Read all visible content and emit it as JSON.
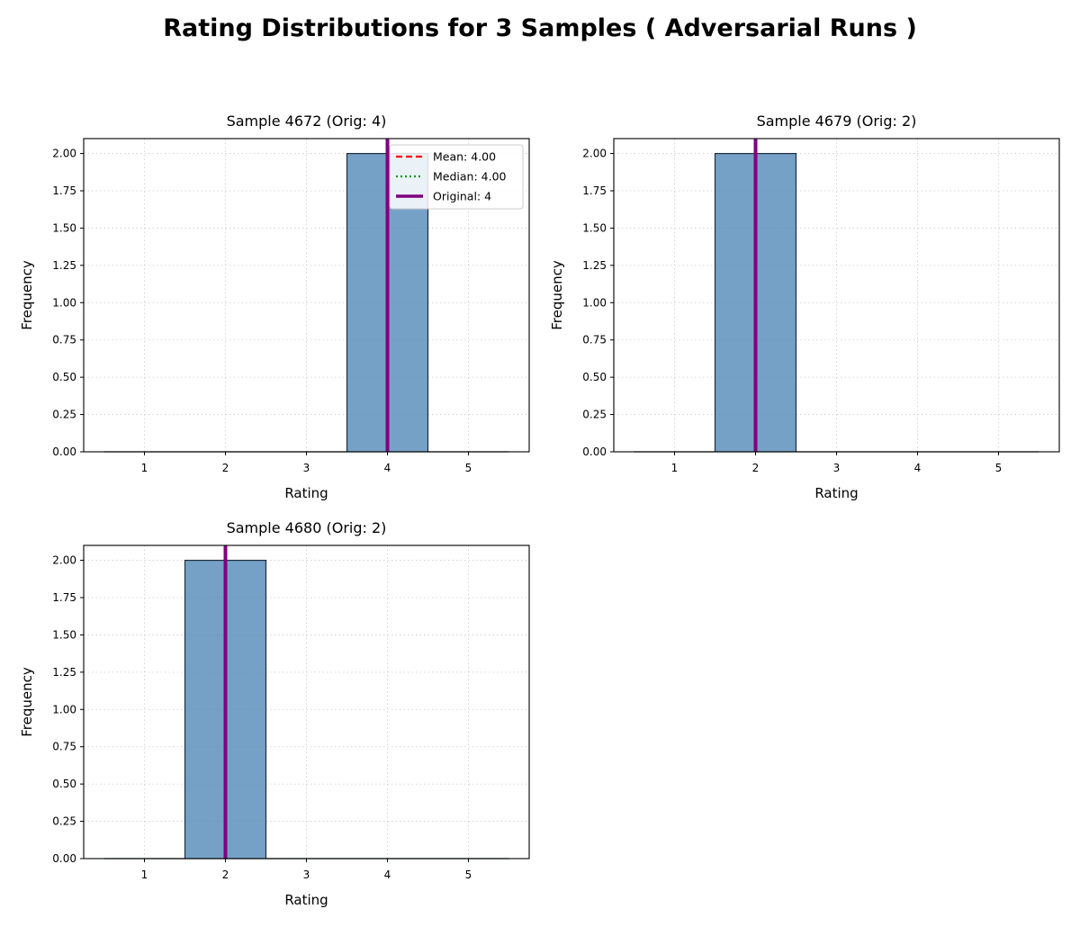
{
  "suptitle": "Rating Distributions for 3 Samples ( Adversarial Runs )",
  "colors": {
    "bar_fill": "#4f86b6",
    "bar_edge": "#1f2d3d",
    "mean_line": "#ff0000",
    "median_line": "#009900",
    "original_line": "#800080",
    "grid": "#cccccc",
    "axis": "#000000"
  },
  "chart_data": [
    {
      "type": "bar",
      "title": "Sample 4672 (Orig: 4)",
      "xlabel": "Rating",
      "ylabel": "Frequency",
      "categories": [
        1,
        2,
        3,
        4,
        5
      ],
      "values": [
        0,
        0,
        0,
        2,
        0
      ],
      "xlim": [
        0.25,
        5.75
      ],
      "ylim": [
        0,
        2.1
      ],
      "xticks": [
        "1",
        "2",
        "3",
        "4",
        "5"
      ],
      "yticks": [
        "0.00",
        "0.25",
        "0.50",
        "0.75",
        "1.00",
        "1.25",
        "1.50",
        "1.75",
        "2.00"
      ],
      "grid": true,
      "original": 4,
      "mean": 4.0,
      "median": 4.0,
      "legend": {
        "placement": "upper right",
        "entries": [
          {
            "label": "Mean: 4.00",
            "style": "dashed",
            "color": "#ff0000"
          },
          {
            "label": "Median: 4.00",
            "style": "dotted",
            "color": "#009900"
          },
          {
            "label": "Original: 4",
            "style": "solid",
            "color": "#800080"
          }
        ]
      }
    },
    {
      "type": "bar",
      "title": "Sample 4679 (Orig: 2)",
      "xlabel": "Rating",
      "ylabel": "Frequency",
      "categories": [
        1,
        2,
        3,
        4,
        5
      ],
      "values": [
        0,
        2,
        0,
        0,
        0
      ],
      "xlim": [
        0.25,
        5.75
      ],
      "ylim": [
        0,
        2.1
      ],
      "xticks": [
        "1",
        "2",
        "3",
        "4",
        "5"
      ],
      "yticks": [
        "0.00",
        "0.25",
        "0.50",
        "0.75",
        "1.00",
        "1.25",
        "1.50",
        "1.75",
        "2.00"
      ],
      "grid": true,
      "original": 2
    },
    {
      "type": "bar",
      "title": "Sample 4680 (Orig: 2)",
      "xlabel": "Rating",
      "ylabel": "Frequency",
      "categories": [
        1,
        2,
        3,
        4,
        5
      ],
      "values": [
        0,
        2,
        0,
        0,
        0
      ],
      "xlim": [
        0.25,
        5.75
      ],
      "ylim": [
        0,
        2.1
      ],
      "xticks": [
        "1",
        "2",
        "3",
        "4",
        "5"
      ],
      "yticks": [
        "0.00",
        "0.25",
        "0.50",
        "0.75",
        "1.00",
        "1.25",
        "1.50",
        "1.75",
        "2.00"
      ],
      "grid": true,
      "original": 2
    }
  ]
}
